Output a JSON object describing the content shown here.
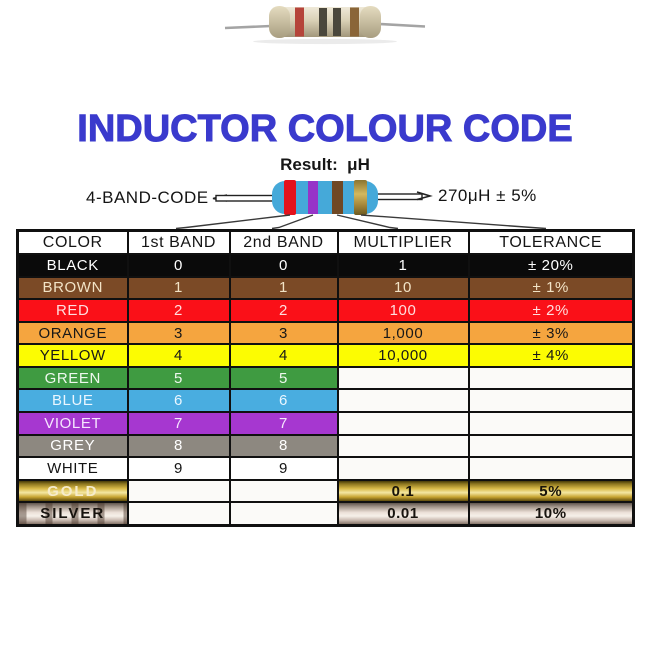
{
  "title": "INDUCTOR COLOUR CODE",
  "title_color": "#3a3acd",
  "result_label": "Result:  μH",
  "diagram": {
    "code_label": "4-BAND-CODE",
    "example_value": "270μH ± 5%",
    "body_color": "#45a9d9",
    "bands": [
      {
        "name": "red-band",
        "color": "#e3121c"
      },
      {
        "name": "violet-band",
        "color": "#9634c8"
      },
      {
        "name": "brown-band",
        "color": "#6f4824"
      },
      {
        "name": "gold-band",
        "color": "#bfa145"
      }
    ]
  },
  "photo_resistor": {
    "body_color": "#d9d0b6",
    "lead_color": "#a4a4a4",
    "band_colors": [
      "#b5443a",
      "#4a473c",
      "#4a473c",
      "#8a6538"
    ]
  },
  "chart_data": {
    "type": "table",
    "title": "INDUCTOR COLOUR CODE",
    "columns": [
      "COLOR",
      "1st BAND",
      "2nd BAND",
      "MULTIPLIER",
      "TOLERANCE"
    ],
    "rows": [
      [
        "BLACK",
        "0",
        "0",
        "1",
        "± 20%"
      ],
      [
        "BROWN",
        "1",
        "1",
        "10",
        "± 1%"
      ],
      [
        "RED",
        "2",
        "2",
        "100",
        "± 2%"
      ],
      [
        "ORANGE",
        "3",
        "3",
        "1,000",
        "± 3%"
      ],
      [
        "YELLOW",
        "4",
        "4",
        "10,000",
        "± 4%"
      ],
      [
        "GREEN",
        "5",
        "5",
        "",
        ""
      ],
      [
        "BLUE",
        "6",
        "6",
        "",
        ""
      ],
      [
        "VIOLET",
        "7",
        "7",
        "",
        ""
      ],
      [
        "GREY",
        "8",
        "8",
        "",
        ""
      ],
      [
        "WHITE",
        "9",
        "9",
        "",
        ""
      ],
      [
        "GOLD",
        "",
        "",
        "0.1",
        "5%"
      ],
      [
        "SILVER",
        "",
        "",
        "0.01",
        "10%"
      ]
    ]
  },
  "table": {
    "headers": [
      "COLOR",
      "1st BAND",
      "2nd BAND",
      "MULTIPLIER",
      "TOLERANCE"
    ],
    "rows": [
      {
        "color": "BLACK",
        "band1": "0",
        "band2": "0",
        "multiplier": "1",
        "tolerance": "± 20%",
        "bg": "#0a0a0a",
        "fg": "#ffffff",
        "scope": "all"
      },
      {
        "color": "BROWN",
        "band1": "1",
        "band2": "1",
        "multiplier": "10",
        "tolerance": "± 1%",
        "bg": "#7b4a26",
        "fg": "#f2e3c6",
        "scope": "all"
      },
      {
        "color": "RED",
        "band1": "2",
        "band2": "2",
        "multiplier": "100",
        "tolerance": "± 2%",
        "bg": "#fa1018",
        "fg": "#ffdede",
        "scope": "all"
      },
      {
        "color": "ORANGE",
        "band1": "3",
        "band2": "3",
        "multiplier": "1,000",
        "tolerance": "± 3%",
        "bg": "#f5a53f",
        "fg": "#181818",
        "scope": "all"
      },
      {
        "color": "YELLOW",
        "band1": "4",
        "band2": "4",
        "multiplier": "10,000",
        "tolerance": "± 4%",
        "bg": "#fcfc02",
        "fg": "#181818",
        "scope": "all"
      },
      {
        "color": "GREEN",
        "band1": "5",
        "band2": "5",
        "multiplier": "",
        "tolerance": "",
        "bg": "#3f9b41",
        "fg": "#eef8ee",
        "scope": "bands"
      },
      {
        "color": "BLUE",
        "band1": "6",
        "band2": "6",
        "multiplier": "",
        "tolerance": "",
        "bg": "#49ade0",
        "fg": "#eaf6ff",
        "scope": "bands"
      },
      {
        "color": "VIOLET",
        "band1": "7",
        "band2": "7",
        "multiplier": "",
        "tolerance": "",
        "bg": "#a637d0",
        "fg": "#f6e6ff",
        "scope": "bands"
      },
      {
        "color": "GREY",
        "band1": "8",
        "band2": "8",
        "multiplier": "",
        "tolerance": "",
        "bg": "#8d8880",
        "fg": "#ffffff",
        "scope": "bands"
      },
      {
        "color": "WHITE",
        "band1": "9",
        "band2": "9",
        "multiplier": "",
        "tolerance": "",
        "bg": "#ffffff",
        "fg": "#141414",
        "scope": "bands"
      },
      {
        "color": "GOLD",
        "band1": "",
        "band2": "",
        "multiplier": "0.1",
        "tolerance": "5%",
        "metal": "gold",
        "fg": "#f6eccb",
        "value_fg": "#17130a",
        "scope": "metal"
      },
      {
        "color": "SILVER",
        "band1": "",
        "band2": "",
        "multiplier": "0.01",
        "tolerance": "10%",
        "metal": "silver",
        "fg": "#17130e",
        "value_fg": "#17130e",
        "scope": "metal"
      }
    ]
  }
}
